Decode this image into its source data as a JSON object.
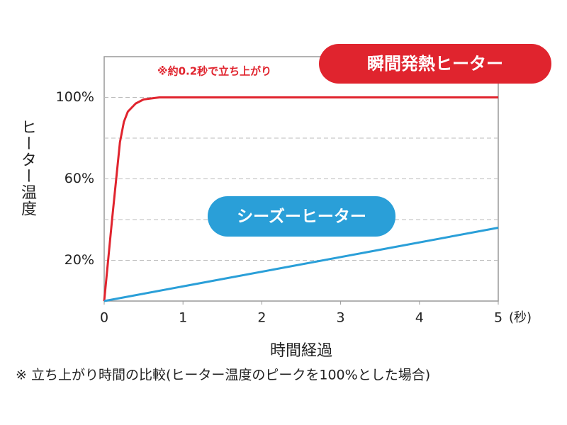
{
  "chart_data": {
    "type": "line",
    "y_label": "ヒーター温度",
    "x_label": "時間経過",
    "x_unit": "(秒)",
    "annotation": "※約0.2秒で立ち上がり",
    "footnote": "※  立ち上がり時間の比較(ヒーター温度のピークを100%とした場合)",
    "xlim": [
      0,
      5
    ],
    "xticks": [
      0,
      1,
      2,
      3,
      4,
      5
    ],
    "ylim": [
      0,
      120
    ],
    "yticks": [
      {
        "value": 20,
        "label": "20%"
      },
      {
        "value": 60,
        "label": "60%"
      },
      {
        "value": 100,
        "label": "100%"
      }
    ],
    "minor_yticks": [
      40,
      80
    ],
    "grid": true,
    "series": [
      {
        "name": "瞬間発熱ヒーター",
        "color": "#e0242e",
        "x": [
          0,
          0.1,
          0.2,
          0.25,
          0.3,
          0.4,
          0.5,
          0.7,
          5
        ],
        "values": [
          0,
          40,
          78,
          88,
          93,
          97,
          99,
          100,
          100
        ]
      },
      {
        "name": "シーズーヒーター",
        "color": "#2a9fd8",
        "x": [
          0,
          5
        ],
        "values": [
          0,
          36
        ]
      }
    ]
  }
}
